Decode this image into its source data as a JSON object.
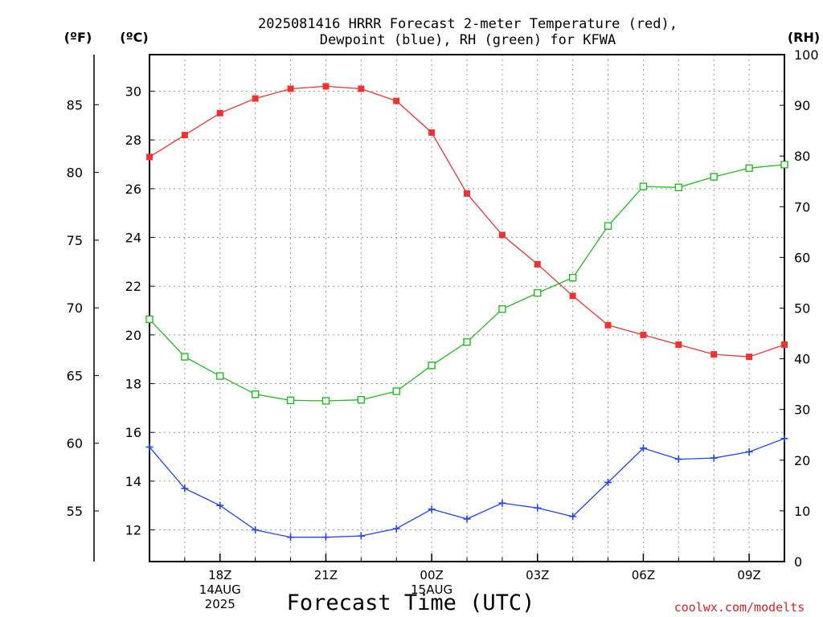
{
  "chart_data": {
    "type": "line",
    "title_line1": "2025081416 HRRR Forecast 2-meter Temperature (red),",
    "title_line2": "Dewpoint (blue), RH (green) for KFWA",
    "xlabel": "Forecast Time (UTC)",
    "credit": "coolwx.com/modelts",
    "left_outer_unit": "(ºF)",
    "left_inner_unit": "(ºC)",
    "right_unit": "(RH)",
    "x_hours": [
      16,
      17,
      18,
      19,
      20,
      21,
      22,
      23,
      24,
      25,
      26,
      27,
      28,
      29,
      30,
      31,
      32,
      33,
      34
    ],
    "x_tick_hours": [
      18,
      21,
      24,
      27,
      30,
      33
    ],
    "x_tick_labels": [
      [
        "18Z",
        "14AUG",
        "2025"
      ],
      [
        "21Z"
      ],
      [
        "00Z",
        "15AUG"
      ],
      [
        "03Z"
      ],
      [
        "06Z"
      ],
      [
        "09Z"
      ]
    ],
    "celsius_range": [
      10.7,
      31.5
    ],
    "celsius_ticks": [
      12,
      14,
      16,
      18,
      20,
      22,
      24,
      26,
      28,
      30
    ],
    "fahrenheit_ticks": [
      55,
      60,
      65,
      70,
      75,
      80,
      85
    ],
    "rh_range": [
      0,
      100
    ],
    "rh_ticks": [
      0,
      10,
      20,
      30,
      40,
      50,
      60,
      70,
      80,
      90,
      100
    ],
    "grid": true,
    "series": [
      {
        "name": "Temperature",
        "color": "#ee3333",
        "marker": "filled-square",
        "axis": "celsius",
        "values": [
          27.3,
          28.2,
          29.1,
          29.7,
          30.1,
          30.2,
          30.1,
          29.6,
          28.3,
          25.8,
          24.1,
          22.9,
          21.6,
          20.4,
          20.0,
          19.6,
          19.2,
          19.1,
          19.6
        ]
      },
      {
        "name": "Dewpoint",
        "color": "#2244ee",
        "marker": "plus",
        "axis": "celsius",
        "values": [
          15.4,
          13.7,
          13.0,
          12.0,
          11.7,
          11.7,
          11.75,
          12.05,
          12.85,
          12.45,
          13.1,
          12.9,
          12.55,
          13.95,
          15.35,
          14.9,
          14.95,
          15.2,
          15.75
        ]
      },
      {
        "name": "RH",
        "color": "#22bb22",
        "marker": "open-square",
        "axis": "rh",
        "values": [
          47.8,
          40.4,
          36.6,
          33.0,
          31.8,
          31.7,
          31.9,
          33.6,
          38.7,
          43.3,
          49.8,
          53.0,
          56.0,
          66.2,
          74.0,
          73.8,
          75.9,
          77.6,
          78.3
        ]
      }
    ]
  }
}
